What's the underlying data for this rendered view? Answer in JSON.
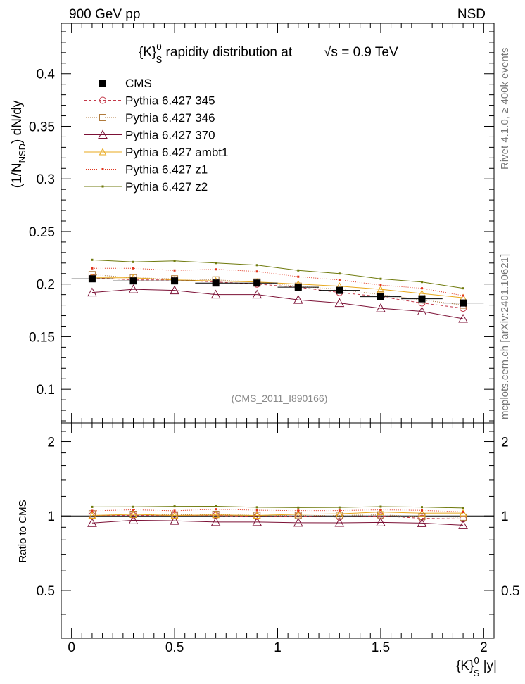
{
  "header": {
    "left": "900 GeV pp",
    "right": "NSD",
    "side_label": "mcplots.cern.ch [arXiv:2401.10621]",
    "side_label_top": "Rivet 4.1.0, ≥ 400k events",
    "analysis_id": "(CMS_2011_I890166)"
  },
  "chart_data": {
    "type": "line",
    "title_parts": {
      "k": "{K}",
      "sup": "0",
      "sub": "S",
      "rest": " rapidity distribution at",
      "sqrt_s": "√s = 0.9 TeV"
    },
    "ylabel_parts": {
      "a": "(1/N",
      "sub": "NSD",
      "b": ") dN/dy"
    },
    "xlabel_parts": {
      "k": "{K}",
      "sup": "0",
      "sub": "S",
      "rest": " |y|"
    },
    "ratio_ylabel": "Ratio to CMS",
    "xlim": [
      -0.05,
      2.05
    ],
    "ylim": [
      0.068,
      0.448
    ],
    "ratio_ylim": [
      0.32,
      2.38
    ],
    "x": [
      0.1,
      0.3,
      0.5,
      0.7,
      0.9,
      1.1,
      1.3,
      1.5,
      1.7,
      1.9
    ],
    "x_ticks": [
      0,
      0.5,
      1,
      1.5,
      2
    ],
    "x_tick_labels": [
      "0",
      "0.5",
      "1",
      "1.5",
      "2"
    ],
    "y_ticks": [
      0.1,
      0.15,
      0.2,
      0.25,
      0.3,
      0.35,
      0.4
    ],
    "y_tick_labels": [
      "0.1",
      "0.15",
      "0.2",
      "0.25",
      "0.3",
      "0.35",
      "0.4"
    ],
    "ratio_ticks": [
      0.5,
      1,
      2
    ],
    "ratio_tick_labels": [
      "0.5",
      "1",
      "2"
    ],
    "data": {
      "name": "CMS",
      "values": [
        0.205,
        0.203,
        0.203,
        0.201,
        0.201,
        0.197,
        0.194,
        0.188,
        0.186,
        0.182
      ],
      "color": "#000000"
    },
    "series": [
      {
        "name": "Pythia 6.427 345",
        "color": "#c33748",
        "dash": "4,3",
        "marker": "circle",
        "values": [
          0.206,
          0.204,
          0.204,
          0.202,
          0.2,
          0.197,
          0.192,
          0.188,
          0.182,
          0.177
        ]
      },
      {
        "name": "Pythia 6.427 346",
        "color": "#b07a3c",
        "dash": "1,2",
        "marker": "square",
        "values": [
          0.209,
          0.206,
          0.205,
          0.204,
          0.202,
          0.198,
          0.195,
          0.19,
          0.185,
          0.18
        ]
      },
      {
        "name": "Pythia 6.427 370",
        "color": "#7c1136",
        "dash": "",
        "marker": "triangle",
        "values": [
          0.192,
          0.195,
          0.194,
          0.19,
          0.19,
          0.185,
          0.182,
          0.177,
          0.174,
          0.167
        ]
      },
      {
        "name": "Pythia 6.427 ambt1",
        "color": "#e8a81c",
        "dash": "",
        "marker": "triangle-small",
        "values": [
          0.206,
          0.206,
          0.204,
          0.203,
          0.202,
          0.2,
          0.198,
          0.195,
          0.191,
          0.187
        ]
      },
      {
        "name": "Pythia 6.427 z1",
        "color": "#e0341d",
        "dash": "1,2",
        "marker": "dot",
        "values": [
          0.215,
          0.215,
          0.213,
          0.214,
          0.212,
          0.207,
          0.204,
          0.199,
          0.196,
          0.189
        ]
      },
      {
        "name": "Pythia 6.427 z2",
        "color": "#6f7a0d",
        "dash": "",
        "marker": "dot",
        "values": [
          0.223,
          0.221,
          0.222,
          0.22,
          0.218,
          0.213,
          0.21,
          0.205,
          0.202,
          0.196
        ]
      }
    ]
  }
}
